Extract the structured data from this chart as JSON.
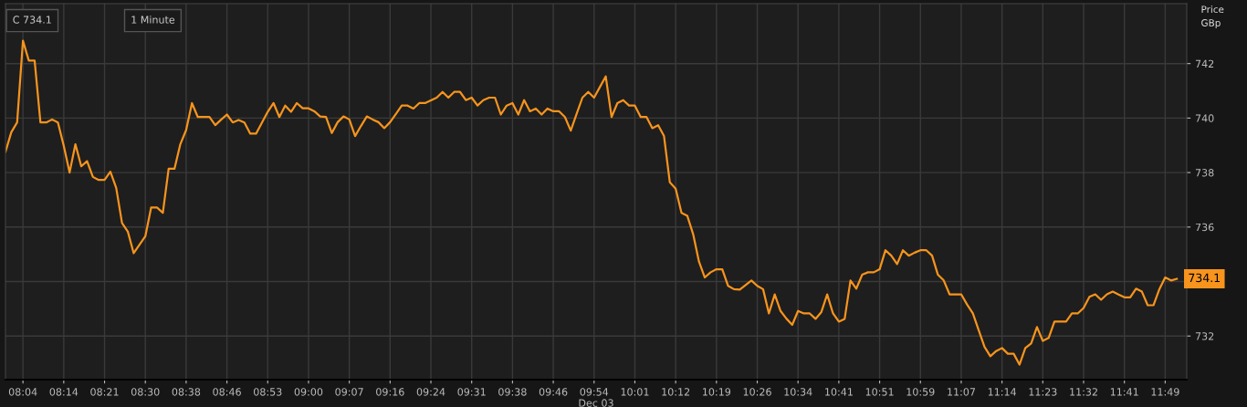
{
  "chart_data": {
    "type": "line",
    "ylabel": "Price\nGBp",
    "xlabel": "Dec 03",
    "annotations": [
      "C 734.1",
      "1 Minute",
      "734.1"
    ],
    "categories": [
      null,
      null,
      null,
      "08:04",
      null,
      null,
      null,
      null,
      null,
      null,
      "08:14",
      null,
      null,
      null,
      null,
      null,
      null,
      "08:21",
      null,
      null,
      null,
      null,
      null,
      null,
      "08:30",
      null,
      null,
      null,
      null,
      null,
      null,
      "08:38",
      null,
      null,
      null,
      null,
      null,
      null,
      "08:46",
      null,
      null,
      null,
      null,
      null,
      null,
      "08:53",
      null,
      null,
      null,
      null,
      null,
      null,
      "09:00",
      null,
      null,
      null,
      null,
      null,
      null,
      "09:07",
      null,
      null,
      null,
      null,
      null,
      null,
      "09:16",
      null,
      null,
      null,
      null,
      null,
      null,
      "09:24",
      null,
      null,
      null,
      null,
      null,
      null,
      "09:31",
      null,
      null,
      null,
      null,
      null,
      null,
      "09:38",
      null,
      null,
      null,
      null,
      null,
      null,
      "09:46",
      null,
      null,
      null,
      null,
      null,
      null,
      "09:54",
      null,
      null,
      null,
      null,
      null,
      null,
      "10:01",
      null,
      null,
      null,
      null,
      null,
      null,
      "10:12",
      null,
      null,
      null,
      null,
      null,
      null,
      "10:19",
      null,
      null,
      null,
      null,
      null,
      null,
      "10:26",
      null,
      null,
      null,
      null,
      null,
      null,
      "10:34",
      null,
      null,
      null,
      null,
      null,
      null,
      "10:41",
      null,
      null,
      null,
      null,
      null,
      null,
      "10:51",
      null,
      null,
      null,
      null,
      null,
      null,
      "10:59",
      null,
      null,
      null,
      null,
      null,
      null,
      "11:07",
      null,
      null,
      null,
      null,
      null,
      null,
      "11:14",
      null,
      null,
      null,
      null,
      null,
      null,
      "11:23",
      null,
      null,
      null,
      null,
      null,
      null,
      "11:32",
      null,
      null,
      null,
      null,
      null,
      null,
      "11:41",
      null,
      null,
      null,
      null,
      null,
      null,
      "11:49",
      null,
      null
    ],
    "series": [
      {
        "color": "#f7941d",
        "values": [
          738.76,
          739.48,
          739.84,
          742.84,
          742.11,
          742.11,
          739.84,
          739.84,
          739.95,
          739.84,
          738.98,
          738.0,
          739.04,
          738.23,
          738.42,
          737.84,
          737.73,
          737.73,
          738.03,
          737.44,
          736.15,
          735.83,
          735.04,
          735.35,
          735.66,
          736.72,
          736.72,
          736.52,
          738.14,
          738.14,
          739.04,
          739.56,
          740.55,
          740.04,
          740.04,
          740.04,
          739.74,
          739.94,
          740.13,
          739.84,
          739.93,
          739.84,
          739.43,
          739.43,
          739.83,
          740.23,
          740.55,
          740.04,
          740.46,
          740.23,
          740.55,
          740.36,
          740.36,
          740.25,
          740.06,
          740.04,
          739.45,
          739.85,
          740.06,
          739.95,
          739.34,
          739.71,
          740.06,
          739.95,
          739.85,
          739.63,
          739.85,
          740.15,
          740.46,
          740.46,
          740.35,
          740.55,
          740.55,
          740.65,
          740.75,
          740.96,
          740.75,
          740.96,
          740.96,
          740.66,
          740.75,
          740.46,
          740.66,
          740.75,
          740.75,
          740.13,
          740.46,
          740.55,
          740.13,
          740.66,
          740.25,
          740.35,
          740.13,
          740.35,
          740.25,
          740.25,
          740.04,
          739.54,
          740.15,
          740.75,
          740.96,
          740.75,
          741.14,
          741.53,
          740.04,
          740.55,
          740.66,
          740.46,
          740.46,
          740.04,
          740.04,
          739.63,
          739.74,
          739.34,
          737.64,
          737.41,
          736.52,
          736.41,
          735.74,
          734.73,
          734.15,
          734.34,
          734.45,
          734.45,
          733.84,
          733.72,
          733.7,
          733.87,
          734.04,
          733.84,
          733.72,
          732.83,
          733.53,
          732.92,
          732.64,
          732.41,
          732.92,
          732.83,
          732.83,
          732.63,
          732.88,
          733.53,
          732.83,
          732.53,
          732.63,
          734.04,
          733.74,
          734.25,
          734.34,
          734.34,
          734.45,
          735.15,
          734.95,
          734.64,
          735.15,
          734.95,
          735.06,
          735.15,
          735.15,
          734.95,
          734.25,
          734.04,
          733.53,
          733.53,
          733.53,
          733.16,
          732.83,
          732.21,
          731.6,
          731.26,
          731.45,
          731.56,
          731.35,
          731.35,
          730.95,
          731.56,
          731.73,
          732.33,
          731.82,
          731.93,
          732.53,
          732.53,
          732.53,
          732.83,
          732.83,
          733.03,
          733.44,
          733.53,
          733.33,
          733.53,
          733.63,
          733.52,
          733.42,
          733.42,
          733.74,
          733.63,
          733.13,
          733.13,
          733.72,
          734.15,
          734.04,
          734.1
        ]
      }
    ],
    "ylim": [
      730.4,
      744.2
    ],
    "yticks": [
      732,
      {
        "value": 734,
        "label": null
      },
      736,
      738,
      740,
      742
    ],
    "grid": true,
    "marker": "none",
    "line_style": "solid"
  }
}
